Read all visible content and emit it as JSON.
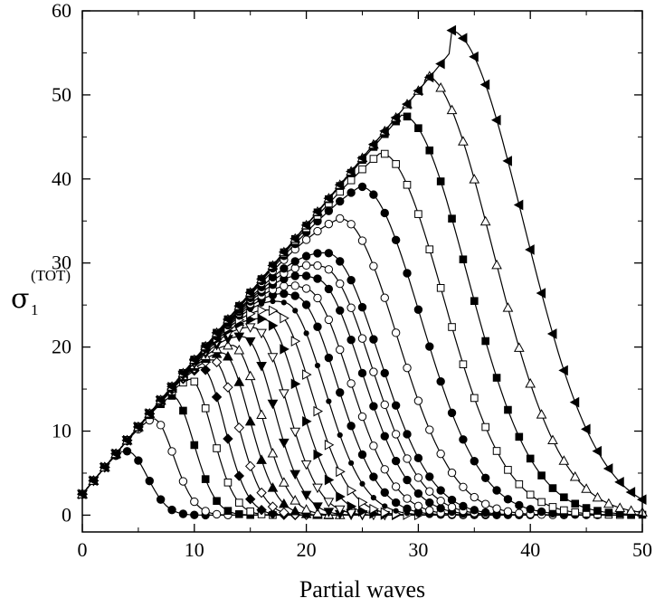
{
  "chart_data": {
    "type": "line",
    "title": "",
    "xlabel": "Partial waves",
    "ylabel": "σ",
    "ylabel_subscript": "1",
    "ylabel_superscript": "(TOT)",
    "xlim": [
      0,
      50
    ],
    "ylim": [
      -2,
      60
    ],
    "x_ticks": [
      0,
      10,
      20,
      30,
      40,
      50
    ],
    "y_ticks": [
      0,
      10,
      20,
      30,
      40,
      50,
      60
    ],
    "grid": false,
    "legend": "none",
    "marker_cycle": [
      "filled-circle",
      "open-circle",
      "filled-square",
      "open-square",
      "filled-diamond",
      "open-diamond",
      "filled-triangle-up",
      "open-triangle-up",
      "filled-triangle-down",
      "open-triangle-down",
      "filled-triangle-right",
      "open-triangle-right",
      "small-dot",
      "filled-triangle-left"
    ],
    "curve_model": "points follow the common rise y = 2.5 + 1.6x up to a peak at (peak_x, peak_y), then decay with a gaussian tail of the given width",
    "series": [
      {
        "peak_x": 4,
        "peak_y": 7.6,
        "width": 2.4,
        "marker": "filled-circle"
      },
      {
        "peak_x": 6.3,
        "peak_y": 11.5,
        "width": 2.5,
        "marker": "open-circle"
      },
      {
        "peak_x": 8,
        "peak_y": 14.2,
        "width": 2.6,
        "marker": "filled-square"
      },
      {
        "peak_x": 9.6,
        "peak_y": 16.2,
        "width": 2.7,
        "marker": "open-square"
      },
      {
        "peak_x": 10.6,
        "peak_y": 17.6,
        "width": 2.8,
        "marker": "filled-diamond"
      },
      {
        "peak_x": 11.6,
        "peak_y": 18.5,
        "width": 3.0,
        "marker": "open-diamond"
      },
      {
        "peak_x": 12.5,
        "peak_y": 19.3,
        "width": 3.2,
        "marker": "filled-triangle-up"
      },
      {
        "peak_x": 13.4,
        "peak_y": 20.2,
        "width": 3.4,
        "marker": "open-triangle-up"
      },
      {
        "peak_x": 14.4,
        "peak_y": 21.2,
        "width": 3.6,
        "marker": "filled-triangle-down"
      },
      {
        "peak_x": 15.3,
        "peak_y": 22.3,
        "width": 3.9,
        "marker": "open-triangle-down"
      },
      {
        "peak_x": 16.2,
        "peak_y": 23.3,
        "width": 4.2,
        "marker": "filled-triangle-right"
      },
      {
        "peak_x": 17.1,
        "peak_y": 24.3,
        "width": 4.5,
        "marker": "open-triangle-right"
      },
      {
        "peak_x": 18.0,
        "peak_y": 25.3,
        "width": 4.8,
        "marker": "small-dot"
      },
      {
        "peak_x": 18.9,
        "peak_y": 26.1,
        "width": 5.1,
        "marker": "filled-circle"
      },
      {
        "peak_x": 19.8,
        "peak_y": 27.0,
        "width": 5.4,
        "marker": "open-circle"
      },
      {
        "peak_x": 20.7,
        "peak_y": 28.2,
        "width": 5.7,
        "marker": "filled-circle"
      },
      {
        "peak_x": 21.3,
        "peak_y": 29.6,
        "width": 6.0,
        "marker": "open-circle"
      },
      {
        "peak_x": 21.8,
        "peak_y": 31.2,
        "width": 6.3,
        "marker": "filled-circle"
      },
      {
        "peak_x": 23.0,
        "peak_y": 35.3,
        "width": 6.8,
        "marker": "open-circle"
      },
      {
        "peak_x": 24.8,
        "peak_y": 39.1,
        "width": 7.2,
        "marker": "filled-circle"
      },
      {
        "peak_x": 26.6,
        "peak_y": 43.1,
        "width": 7.5,
        "marker": "open-square"
      },
      {
        "peak_x": 28.5,
        "peak_y": 47.6,
        "width": 7.8,
        "marker": "filled-square"
      },
      {
        "peak_x": 30.5,
        "peak_y": 52.4,
        "width": 8.2,
        "marker": "open-triangle-up"
      },
      {
        "peak_x": 32.8,
        "peak_y": 57.7,
        "width": 8.8,
        "marker": "filled-triangle-left"
      }
    ]
  }
}
